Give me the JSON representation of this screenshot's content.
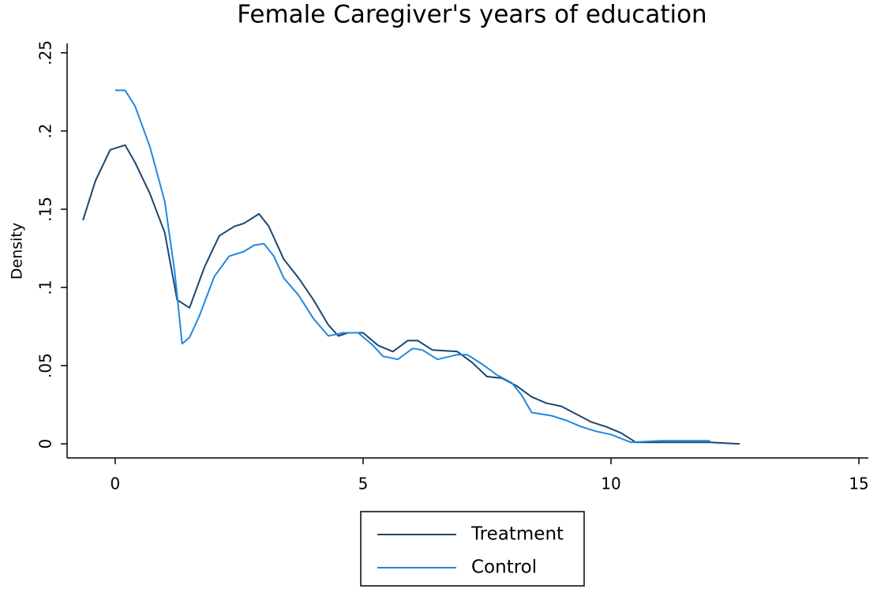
{
  "chart_data": {
    "type": "line",
    "title": "Female Caregiver's years of education",
    "y_label": "Density",
    "xlim": [
      -0.97,
      15.19
    ],
    "ylim": [
      -0.009,
      0.256
    ],
    "xticks": [
      0,
      5,
      10,
      15
    ],
    "yticks": [
      0,
      {
        "value": 0.05,
        "label": ".05"
      },
      {
        "value": 0.1,
        "label": ".1"
      },
      {
        "value": 0.15,
        "label": ".15"
      },
      {
        "value": 0.2,
        "label": ".2"
      },
      {
        "value": 0.25,
        "label": ".25"
      }
    ],
    "grid": false,
    "legend": "bottom",
    "series": [
      {
        "name": "Treatment",
        "color": "#1a476f",
        "x": [
          -0.65,
          -0.4,
          -0.1,
          0.2,
          0.4,
          0.7,
          1.0,
          1.25,
          1.5,
          1.8,
          2.1,
          2.4,
          2.6,
          2.9,
          3.1,
          3.4,
          3.7,
          4.0,
          4.3,
          4.5,
          4.7,
          5.0,
          5.3,
          5.6,
          5.9,
          6.1,
          6.4,
          6.9,
          7.2,
          7.5,
          7.8,
          8.1,
          8.4,
          8.7,
          9.0,
          9.3,
          9.6,
          9.9,
          10.2,
          10.5,
          11,
          12,
          12.6
        ],
        "values": [
          0.143,
          0.168,
          0.188,
          0.191,
          0.18,
          0.16,
          0.135,
          0.092,
          0.087,
          0.113,
          0.133,
          0.139,
          0.141,
          0.147,
          0.139,
          0.118,
          0.106,
          0.092,
          0.076,
          0.069,
          0.071,
          0.071,
          0.063,
          0.059,
          0.066,
          0.066,
          0.06,
          0.059,
          0.052,
          0.043,
          0.042,
          0.037,
          0.03,
          0.026,
          0.024,
          0.019,
          0.014,
          0.011,
          0.007,
          0.001,
          0.001,
          0.001,
          0
        ]
      },
      {
        "name": "Control",
        "color": "#1f88e0",
        "x": [
          0,
          0.2,
          0.4,
          0.7,
          1.0,
          1.2,
          1.35,
          1.5,
          1.7,
          2.0,
          2.3,
          2.6,
          2.8,
          3.0,
          3.2,
          3.4,
          3.7,
          4.0,
          4.3,
          4.6,
          4.9,
          5.2,
          5.4,
          5.7,
          6.0,
          6.2,
          6.5,
          6.9,
          7.1,
          7.4,
          7.7,
          8.0,
          8.2,
          8.4,
          8.8,
          9.1,
          9.4,
          9.7,
          10.0,
          10.4,
          11,
          12
        ],
        "values": [
          0.226,
          0.226,
          0.216,
          0.19,
          0.155,
          0.11,
          0.064,
          0.068,
          0.082,
          0.107,
          0.12,
          0.123,
          0.127,
          0.128,
          0.12,
          0.106,
          0.095,
          0.08,
          0.069,
          0.071,
          0.071,
          0.063,
          0.056,
          0.054,
          0.061,
          0.06,
          0.054,
          0.057,
          0.057,
          0.051,
          0.044,
          0.039,
          0.031,
          0.02,
          0.018,
          0.015,
          0.011,
          0.008,
          0.006,
          0.001,
          0.002,
          0.002
        ]
      }
    ]
  }
}
